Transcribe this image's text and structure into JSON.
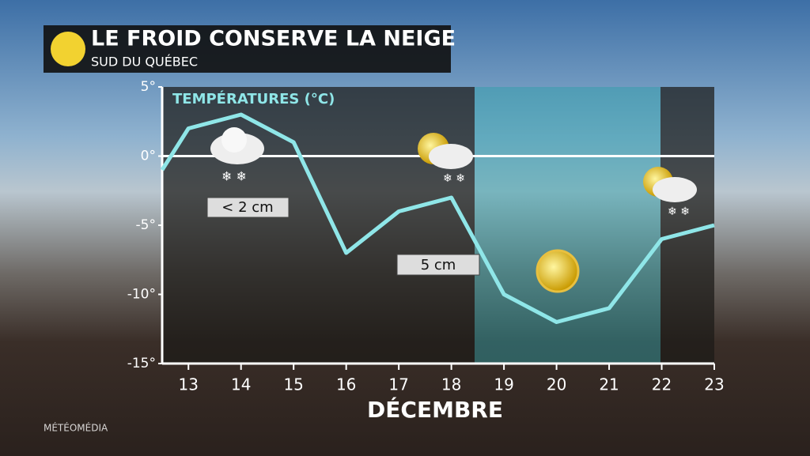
{
  "chart_data": {
    "type": "line",
    "title": "LE FROID CONSERVE LA NEIGE",
    "subtitle": "SUD DU QUÉBEC",
    "y_label": "TEMPÉRATURES (°C)",
    "x_label": "DÉCEMBRE",
    "source": "MÉTÉOMÉDIA",
    "x": [
      12.5,
      13,
      14,
      15,
      16,
      17,
      18,
      19,
      20,
      21,
      22,
      23
    ],
    "series": [
      {
        "name": "Températures",
        "color": "#8fe6e8",
        "values": [
          -1,
          2,
          3,
          1,
          -7,
          -4,
          -3,
          -10,
          -12,
          -11,
          -6,
          -5
        ]
      }
    ],
    "xlim": [
      12.5,
      23
    ],
    "xticks": [
      13,
      14,
      15,
      16,
      17,
      18,
      19,
      20,
      21,
      22,
      23
    ],
    "ylim": [
      -15,
      5
    ],
    "yticks": [
      {
        "value": 5,
        "label": "5°"
      },
      {
        "value": 0,
        "label": "0°"
      },
      {
        "value": -5,
        "label": "-5°"
      },
      {
        "value": -10,
        "label": "-10°"
      },
      {
        "value": -15,
        "label": "-15°"
      }
    ],
    "zero_line": true,
    "annotations": [
      "< 2 cm",
      "5 cm"
    ]
  }
}
